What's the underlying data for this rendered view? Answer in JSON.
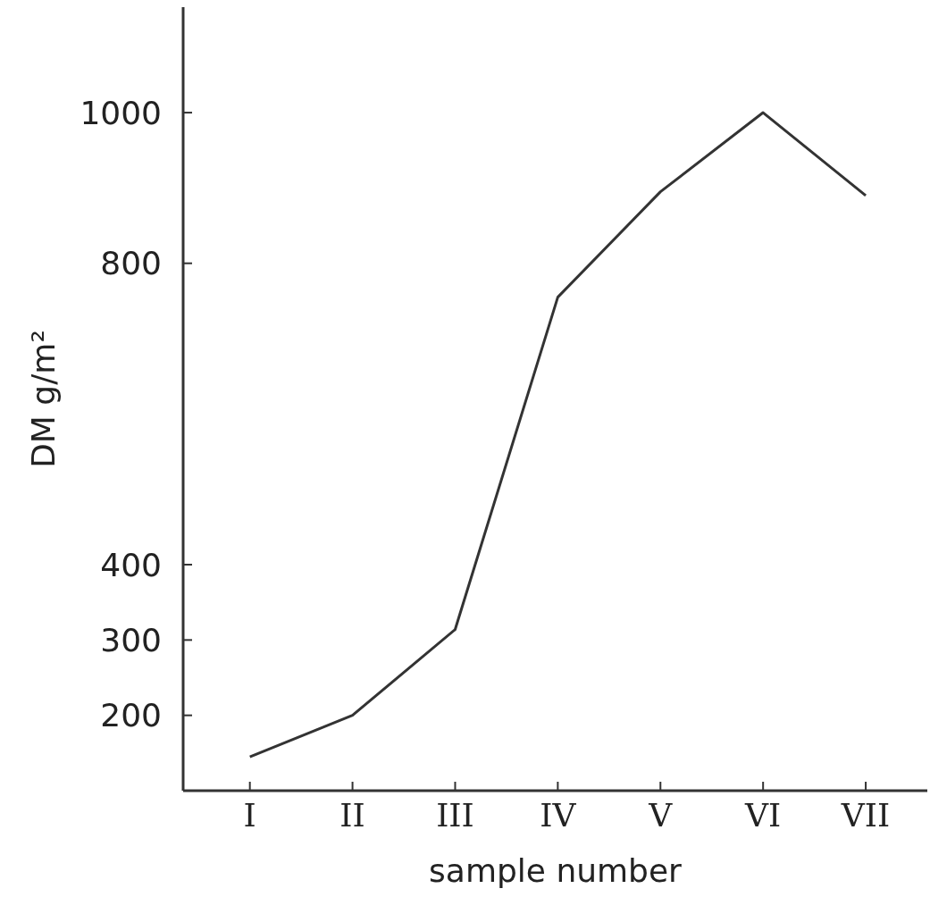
{
  "chart_data": {
    "type": "line",
    "xlabel": "sample number",
    "ylabel": "DM   g/m²",
    "categories": [
      "I",
      "II",
      "III",
      "IV",
      "V",
      "VI",
      "VII"
    ],
    "values": [
      145,
      200,
      314,
      755,
      895,
      1000,
      890
    ],
    "color": "#333333",
    "ylim": [
      100,
      1140
    ],
    "yticks": [
      200,
      300,
      400,
      800,
      1000
    ],
    "grid": false,
    "legend": false
  }
}
